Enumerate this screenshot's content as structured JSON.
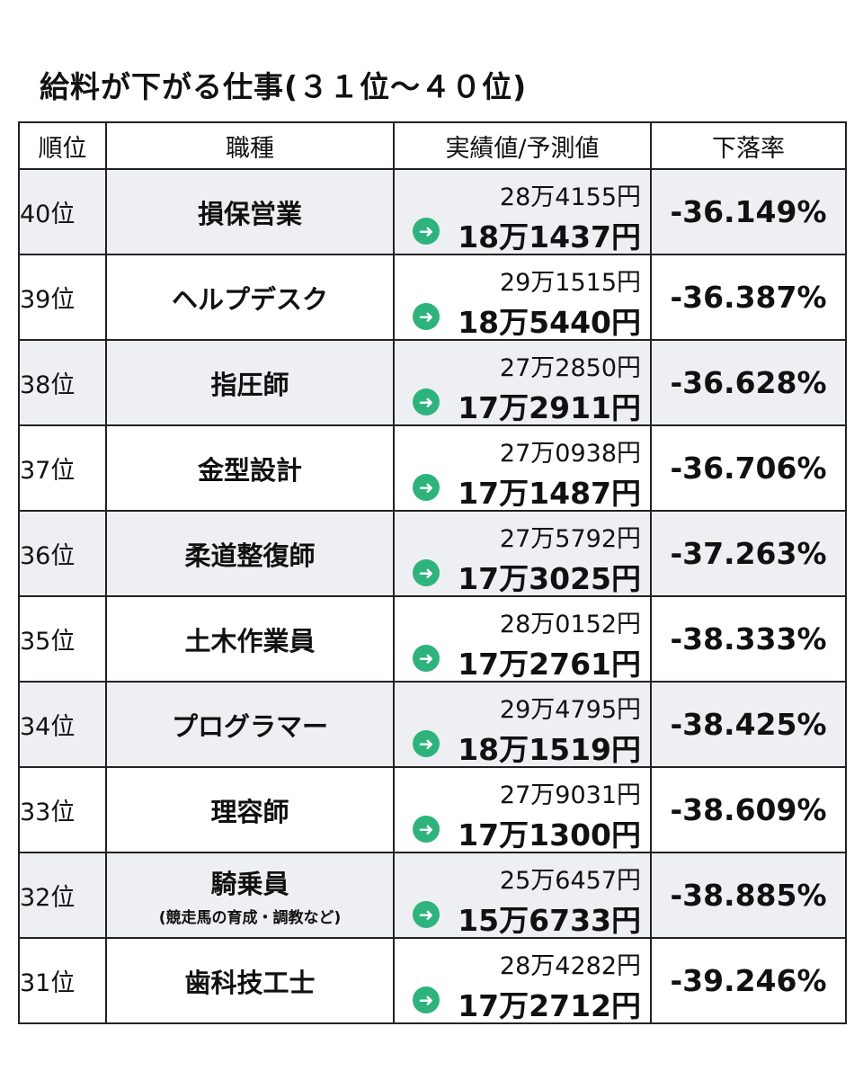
{
  "title": "給料が下がる仕事(３１位～４０位)",
  "colors": {
    "arrow": "#2fb37c",
    "shaded_row": "#eeeff3",
    "border": "#222222"
  },
  "table": {
    "headers": [
      "順位",
      "職種",
      "実績値/予測値",
      "下落率"
    ],
    "rows": [
      {
        "rank": "40位",
        "job": "損保営業",
        "job_sub": "",
        "actual": "28万4155円",
        "predicted": "18万1437円",
        "rate": "-36.149%"
      },
      {
        "rank": "39位",
        "job": "ヘルプデスク",
        "job_sub": "",
        "actual": "29万1515円",
        "predicted": "18万5440円",
        "rate": "-36.387%"
      },
      {
        "rank": "38位",
        "job": "指圧師",
        "job_sub": "",
        "actual": "27万2850円",
        "predicted": "17万2911円",
        "rate": "-36.628%"
      },
      {
        "rank": "37位",
        "job": "金型設計",
        "job_sub": "",
        "actual": "27万0938円",
        "predicted": "17万1487円",
        "rate": "-36.706%"
      },
      {
        "rank": "36位",
        "job": "柔道整復師",
        "job_sub": "",
        "actual": "27万5792円",
        "predicted": "17万3025円",
        "rate": "-37.263%"
      },
      {
        "rank": "35位",
        "job": "土木作業員",
        "job_sub": "",
        "actual": "28万0152円",
        "predicted": "17万2761円",
        "rate": "-38.333%"
      },
      {
        "rank": "34位",
        "job": "プログラマー",
        "job_sub": "",
        "actual": "29万4795円",
        "predicted": "18万1519円",
        "rate": "-38.425%"
      },
      {
        "rank": "33位",
        "job": "理容師",
        "job_sub": "",
        "actual": "27万9031円",
        "predicted": "17万1300円",
        "rate": "-38.609%"
      },
      {
        "rank": "32位",
        "job": "騎乗員",
        "job_sub": "(競走馬の育成・調教など)",
        "actual": "25万6457円",
        "predicted": "15万6733円",
        "rate": "-38.885%"
      },
      {
        "rank": "31位",
        "job": "歯科技工士",
        "job_sub": "",
        "actual": "28万4282円",
        "predicted": "17万2712円",
        "rate": "-39.246%"
      }
    ]
  }
}
